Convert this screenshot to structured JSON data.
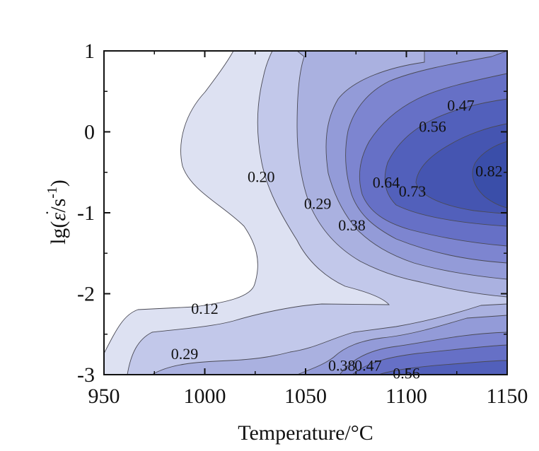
{
  "chart_data": {
    "type": "heatmap",
    "subtype": "filled-contour",
    "xlabel": "Temperature/°C",
    "ylabel_parts": {
      "prefix": "lg(",
      "symbol": "ε",
      "middle": "/s",
      "exponent": "-1",
      "suffix": ")"
    },
    "xlim": [
      950,
      1150
    ],
    "ylim": [
      -3,
      1
    ],
    "xticks": [
      950,
      1000,
      1050,
      1100,
      1150
    ],
    "xtick_labels": [
      "950",
      "1000",
      "1050",
      "1100",
      "1150"
    ],
    "yticks": [
      1,
      0,
      -1,
      -2,
      -3
    ],
    "ytick_labels": [
      "1",
      "0",
      "-1",
      "-2",
      "-3"
    ],
    "grid": false,
    "levels": [
      0.12,
      0.2,
      0.29,
      0.38,
      0.47,
      0.56,
      0.64,
      0.73,
      0.82
    ],
    "colors": [
      "#dde1f2",
      "#c2c8ea",
      "#aab1e0",
      "#939bd8",
      "#7d85d0",
      "#6670c6",
      "#5260bb",
      "#4555b1",
      "#3a4ea9"
    ],
    "contour_labels": [
      {
        "text": "0.47",
        "x": 1127,
        "y": 0.33
      },
      {
        "text": "0.56",
        "x": 1113,
        "y": 0.07
      },
      {
        "text": "0.82",
        "x": 1141,
        "y": -0.48
      },
      {
        "text": "0.64",
        "x": 1090,
        "y": -0.62
      },
      {
        "text": "0.73",
        "x": 1103,
        "y": -0.73
      },
      {
        "text": "0.20",
        "x": 1028,
        "y": -0.55
      },
      {
        "text": "0.29",
        "x": 1056,
        "y": -0.88
      },
      {
        "text": "0.38",
        "x": 1073,
        "y": -1.15
      },
      {
        "text": "0.12",
        "x": 1000,
        "y": -2.18
      },
      {
        "text": "0.29",
        "x": 990,
        "y": -2.74
      },
      {
        "text": "0.38",
        "x": 1068,
        "y": -2.88
      },
      {
        "text": "0.47",
        "x": 1081,
        "y": -2.88
      },
      {
        "text": "0.56",
        "x": 1100,
        "y": -2.98
      }
    ]
  }
}
